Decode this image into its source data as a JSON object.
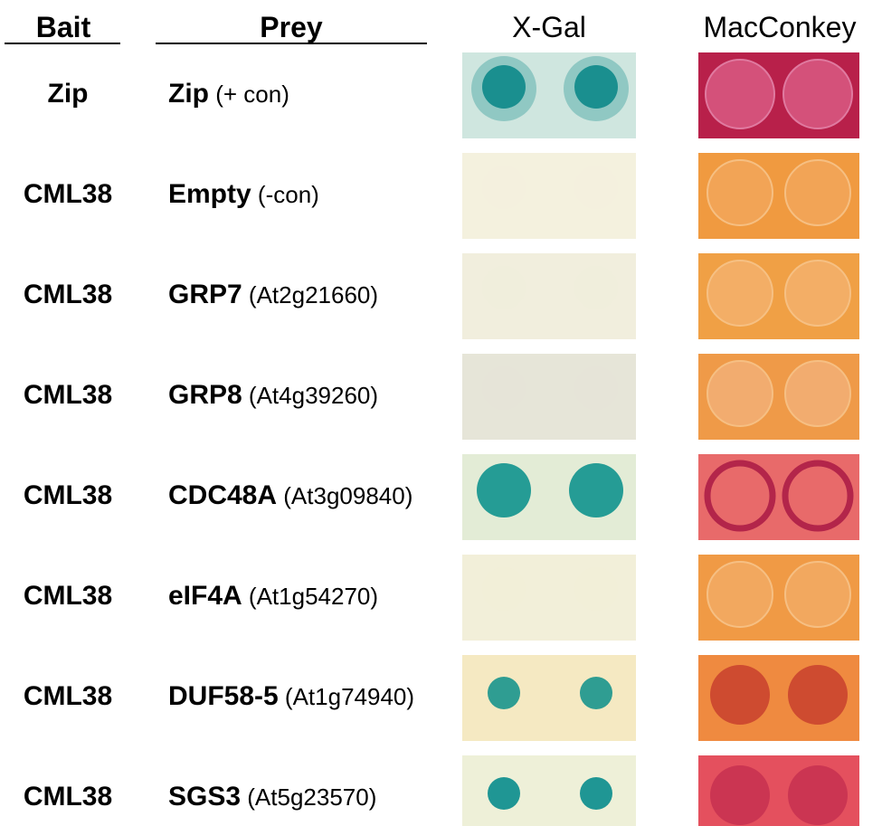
{
  "headers": {
    "bait": "Bait",
    "prey": "Prey",
    "xgal": "X-Gal",
    "macconkey": "MacConkey"
  },
  "rows": [
    {
      "bait": "Zip",
      "prey": "Zip",
      "note": "(+ con)",
      "xgal": {
        "bg": "#cfe6df",
        "spot": "#1a8f8f",
        "spot_visible": true,
        "halo": true
      },
      "mac": {
        "bg": "#b8204a",
        "spot": "#d4517a",
        "style": "pale"
      }
    },
    {
      "bait": "CML38",
      "prey": "Empty",
      "note": "(-con)",
      "xgal": {
        "bg": "#f4f1de",
        "spot": "#f4f1de",
        "spot_visible": false,
        "halo": false
      },
      "mac": {
        "bg": "#f09a40",
        "spot": "#f3a659",
        "style": "faint"
      }
    },
    {
      "bait": "CML38",
      "prey": "GRP7",
      "note": "(At2g21660)",
      "xgal": {
        "bg": "#f1eedd",
        "spot": "#f1eedd",
        "spot_visible": false,
        "halo": false
      },
      "mac": {
        "bg": "#f0a045",
        "spot": "#f4b06a",
        "style": "faint"
      }
    },
    {
      "bait": "CML38",
      "prey": "GRP8",
      "note": "(At4g39260)",
      "xgal": {
        "bg": "#e6e5d8",
        "spot": "#e6e5d8",
        "spot_visible": false,
        "halo": false
      },
      "mac": {
        "bg": "#ef9a48",
        "spot": "#f3ae74",
        "style": "faint"
      }
    },
    {
      "bait": "CML38",
      "prey": "CDC48A",
      "note": "(At3g09840)",
      "xgal": {
        "bg": "#e3ecd6",
        "spot": "#259c95",
        "spot_visible": true,
        "halo": false
      },
      "mac": {
        "bg": "#e86a6a",
        "spot": "#b3254a",
        "style": "ring"
      }
    },
    {
      "bait": "CML38",
      "prey": "eIF4A",
      "note": "(At1g54270)",
      "xgal": {
        "bg": "#f2efd9",
        "spot": "#f2efd9",
        "spot_visible": false,
        "halo": false
      },
      "mac": {
        "bg": "#f09a45",
        "spot": "#f3aa62",
        "style": "faint"
      }
    },
    {
      "bait": "CML38",
      "prey": "DUF58-5",
      "note": "(At1g74940)",
      "xgal": {
        "bg": "#f5e9c2",
        "spot": "#2f9d92",
        "spot_visible": true,
        "halo": false
      },
      "mac": {
        "bg": "#ef8a40",
        "spot": "#c8402e",
        "style": "dark"
      }
    },
    {
      "bait": "CML38",
      "prey": "SGS3",
      "note": "(At5g23570)",
      "xgal": {
        "bg": "#eef0d8",
        "spot": "#1f9694",
        "spot_visible": true,
        "halo": false
      },
      "mac": {
        "bg": "#e4505e",
        "spot": "#c73050",
        "style": "dark"
      }
    }
  ]
}
